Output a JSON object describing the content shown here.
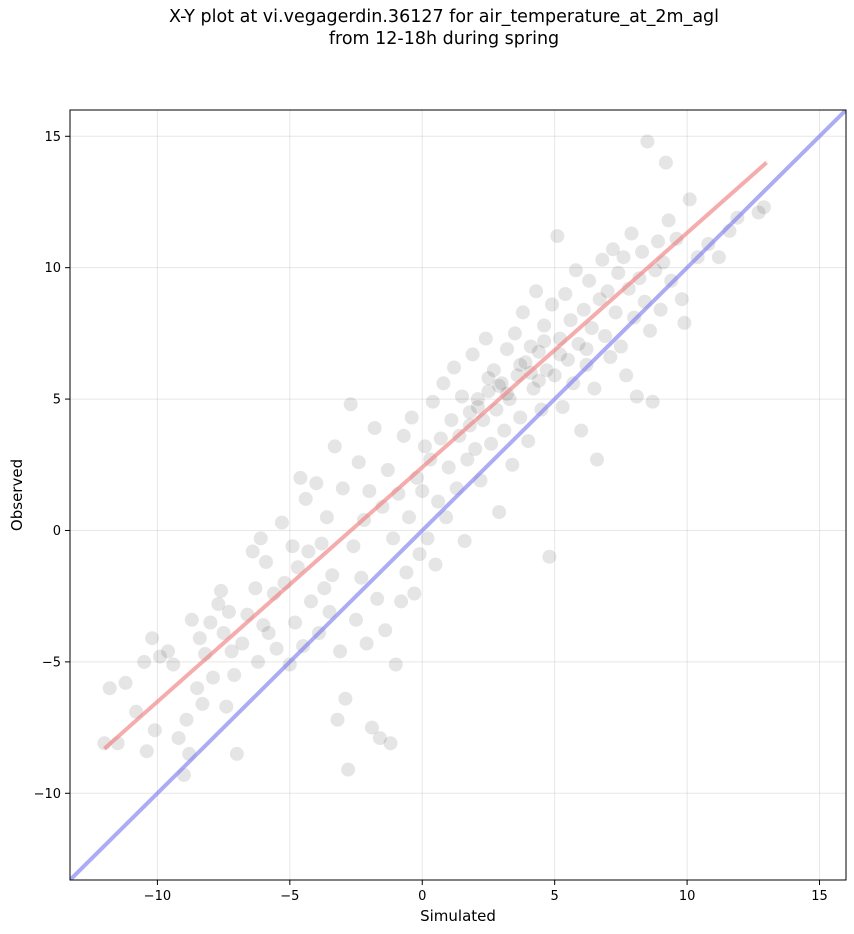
{
  "title_line1": "X-Y plot at vi.vegagerdin.36127 for air_temperature_at_2m_agl",
  "title_line2": "from 12-18h during spring",
  "chart_data": {
    "type": "scatter",
    "title": "X-Y plot at vi.vegagerdin.36127 for air_temperature_at_2m_agl from 12-18h during spring",
    "xlabel": "Simulated",
    "ylabel": "Observed",
    "xlim": [
      -13.3,
      16.0
    ],
    "ylim": [
      -13.3,
      16.0
    ],
    "xticks": [
      -10,
      -5,
      0,
      5,
      10,
      15
    ],
    "xtick_labels": [
      "−10",
      "−5",
      "0",
      "5",
      "10",
      "15"
    ],
    "yticks": [
      -10,
      -5,
      0,
      5,
      10,
      15
    ],
    "ytick_labels": [
      "−10",
      "−5",
      "0",
      "5",
      "10",
      "15"
    ],
    "grid": true,
    "colors": {
      "points": "#000000",
      "regression_line": "#f08080",
      "identity_line": "#8080f0"
    },
    "regression_line": {
      "x": [
        -12,
        13
      ],
      "y": [
        -8.3,
        14.0
      ]
    },
    "identity_line": {
      "x": [
        -13.3,
        16.0
      ],
      "y": [
        -13.3,
        16.0
      ]
    },
    "points": [
      [
        -12.0,
        -8.1
      ],
      [
        -11.8,
        -6.0
      ],
      [
        -11.5,
        -8.1
      ],
      [
        -11.2,
        -5.8
      ],
      [
        -10.8,
        -6.9
      ],
      [
        -10.5,
        -5.0
      ],
      [
        -10.4,
        -8.4
      ],
      [
        -10.2,
        -4.1
      ],
      [
        -10.1,
        -7.6
      ],
      [
        -9.9,
        -4.8
      ],
      [
        -9.6,
        -4.6
      ],
      [
        -9.4,
        -5.1
      ],
      [
        -9.2,
        -7.9
      ],
      [
        -9.0,
        -9.3
      ],
      [
        -8.9,
        -7.2
      ],
      [
        -8.8,
        -8.5
      ],
      [
        -8.7,
        -3.4
      ],
      [
        -8.5,
        -6.0
      ],
      [
        -8.4,
        -4.1
      ],
      [
        -8.3,
        -6.6
      ],
      [
        -8.2,
        -4.7
      ],
      [
        -8.0,
        -3.5
      ],
      [
        -7.9,
        -5.6
      ],
      [
        -7.7,
        -2.8
      ],
      [
        -7.6,
        -2.3
      ],
      [
        -7.5,
        -3.9
      ],
      [
        -7.4,
        -6.7
      ],
      [
        -7.3,
        -3.1
      ],
      [
        -7.2,
        -4.6
      ],
      [
        -7.1,
        -5.5
      ],
      [
        -7.0,
        -8.5
      ],
      [
        -6.8,
        -4.3
      ],
      [
        -6.6,
        -3.2
      ],
      [
        -6.4,
        -0.8
      ],
      [
        -6.3,
        -2.2
      ],
      [
        -6.2,
        -5.0
      ],
      [
        -6.1,
        -0.3
      ],
      [
        -6.0,
        -3.6
      ],
      [
        -5.9,
        -1.2
      ],
      [
        -5.8,
        -3.9
      ],
      [
        -5.6,
        -2.4
      ],
      [
        -5.5,
        -4.5
      ],
      [
        -5.3,
        0.3
      ],
      [
        -5.2,
        -2.0
      ],
      [
        -5.0,
        -5.1
      ],
      [
        -4.9,
        -0.6
      ],
      [
        -4.8,
        -3.5
      ],
      [
        -4.7,
        -1.4
      ],
      [
        -4.6,
        2.0
      ],
      [
        -4.5,
        -4.4
      ],
      [
        -4.4,
        1.2
      ],
      [
        -4.3,
        -0.8
      ],
      [
        -4.2,
        -2.7
      ],
      [
        -4.0,
        1.8
      ],
      [
        -3.9,
        -3.9
      ],
      [
        -3.8,
        -0.5
      ],
      [
        -3.7,
        -2.2
      ],
      [
        -3.6,
        0.5
      ],
      [
        -3.5,
        -3.1
      ],
      [
        -3.4,
        -1.7
      ],
      [
        -3.3,
        3.2
      ],
      [
        -3.2,
        -7.2
      ],
      [
        -3.1,
        -4.6
      ],
      [
        -3.0,
        1.6
      ],
      [
        -2.9,
        -6.4
      ],
      [
        -2.8,
        -9.1
      ],
      [
        -2.7,
        4.8
      ],
      [
        -2.6,
        -0.6
      ],
      [
        -2.5,
        -3.4
      ],
      [
        -2.4,
        2.6
      ],
      [
        -2.3,
        -1.8
      ],
      [
        -2.2,
        0.4
      ],
      [
        -2.1,
        -4.3
      ],
      [
        -2.0,
        1.5
      ],
      [
        -1.9,
        -7.5
      ],
      [
        -1.8,
        3.9
      ],
      [
        -1.7,
        -2.6
      ],
      [
        -1.6,
        -7.9
      ],
      [
        -1.5,
        0.9
      ],
      [
        -1.4,
        -3.8
      ],
      [
        -1.3,
        2.3
      ],
      [
        -1.2,
        -8.1
      ],
      [
        -1.1,
        -0.3
      ],
      [
        -1.0,
        -5.1
      ],
      [
        -0.9,
        1.4
      ],
      [
        -0.8,
        -2.7
      ],
      [
        -0.7,
        3.6
      ],
      [
        -0.6,
        -1.6
      ],
      [
        -0.5,
        0.5
      ],
      [
        -0.4,
        4.3
      ],
      [
        -0.3,
        -2.4
      ],
      [
        -0.2,
        2.0
      ],
      [
        -0.1,
        -0.9
      ],
      [
        0.0,
        1.5
      ],
      [
        0.1,
        3.2
      ],
      [
        0.2,
        -0.3
      ],
      [
        0.3,
        2.7
      ],
      [
        0.4,
        4.9
      ],
      [
        0.5,
        -1.3
      ],
      [
        0.6,
        1.1
      ],
      [
        0.7,
        3.5
      ],
      [
        0.8,
        5.6
      ],
      [
        0.9,
        0.5
      ],
      [
        1.0,
        2.4
      ],
      [
        1.1,
        4.2
      ],
      [
        1.2,
        6.2
      ],
      [
        1.3,
        1.6
      ],
      [
        1.4,
        3.6
      ],
      [
        1.5,
        5.1
      ],
      [
        1.6,
        -0.4
      ],
      [
        1.7,
        2.7
      ],
      [
        1.8,
        4.5
      ],
      [
        1.9,
        6.7
      ],
      [
        2.0,
        3.1
      ],
      [
        2.1,
        5.0
      ],
      [
        2.2,
        1.9
      ],
      [
        2.3,
        4.2
      ],
      [
        2.4,
        7.3
      ],
      [
        2.5,
        5.3
      ],
      [
        2.6,
        3.3
      ],
      [
        2.7,
        6.1
      ],
      [
        2.8,
        4.6
      ],
      [
        2.9,
        0.7
      ],
      [
        3.0,
        5.6
      ],
      [
        3.1,
        3.8
      ],
      [
        3.2,
        6.9
      ],
      [
        3.3,
        5.0
      ],
      [
        3.4,
        2.5
      ],
      [
        3.5,
        7.5
      ],
      [
        3.6,
        5.9
      ],
      [
        3.7,
        4.3
      ],
      [
        3.8,
        8.3
      ],
      [
        3.9,
        6.4
      ],
      [
        4.0,
        3.4
      ],
      [
        4.1,
        7.0
      ],
      [
        4.2,
        5.4
      ],
      [
        4.3,
        9.1
      ],
      [
        4.4,
        6.8
      ],
      [
        4.5,
        4.6
      ],
      [
        4.6,
        7.8
      ],
      [
        4.7,
        6.1
      ],
      [
        4.8,
        -1.0
      ],
      [
        4.9,
        8.6
      ],
      [
        5.0,
        5.9
      ],
      [
        5.1,
        11.2
      ],
      [
        5.2,
        7.3
      ],
      [
        5.3,
        4.7
      ],
      [
        5.4,
        9.0
      ],
      [
        5.5,
        6.5
      ],
      [
        5.6,
        8.0
      ],
      [
        5.7,
        5.6
      ],
      [
        5.8,
        9.9
      ],
      [
        5.9,
        7.1
      ],
      [
        6.0,
        3.8
      ],
      [
        6.1,
        8.4
      ],
      [
        6.2,
        6.3
      ],
      [
        6.3,
        9.5
      ],
      [
        6.4,
        7.7
      ],
      [
        6.5,
        5.4
      ],
      [
        6.6,
        2.7
      ],
      [
        6.7,
        8.8
      ],
      [
        6.8,
        10.3
      ],
      [
        6.9,
        7.4
      ],
      [
        7.0,
        9.1
      ],
      [
        7.1,
        6.6
      ],
      [
        7.2,
        10.7
      ],
      [
        7.3,
        8.3
      ],
      [
        7.4,
        9.8
      ],
      [
        7.5,
        7.0
      ],
      [
        7.6,
        10.4
      ],
      [
        7.7,
        5.9
      ],
      [
        7.8,
        9.2
      ],
      [
        7.9,
        11.3
      ],
      [
        8.0,
        8.1
      ],
      [
        8.1,
        5.1
      ],
      [
        8.2,
        9.6
      ],
      [
        8.3,
        10.6
      ],
      [
        8.4,
        8.7
      ],
      [
        8.5,
        14.8
      ],
      [
        8.6,
        7.6
      ],
      [
        8.7,
        4.9
      ],
      [
        8.8,
        9.9
      ],
      [
        8.9,
        11.0
      ],
      [
        9.0,
        8.4
      ],
      [
        9.1,
        10.2
      ],
      [
        9.2,
        14.0
      ],
      [
        9.3,
        11.8
      ],
      [
        9.4,
        9.5
      ],
      [
        9.6,
        11.1
      ],
      [
        9.8,
        8.8
      ],
      [
        9.9,
        7.9
      ],
      [
        10.1,
        12.6
      ],
      [
        10.4,
        10.4
      ],
      [
        10.8,
        10.9
      ],
      [
        11.2,
        10.4
      ],
      [
        11.6,
        11.4
      ],
      [
        11.9,
        11.9
      ],
      [
        12.7,
        12.1
      ],
      [
        12.9,
        12.3
      ],
      [
        6.2,
        6.9
      ],
      [
        2.1,
        4.7
      ],
      [
        2.5,
        5.8
      ],
      [
        3.2,
        5.2
      ],
      [
        3.7,
        6.3
      ],
      [
        4.1,
        6.0
      ],
      [
        4.6,
        7.2
      ],
      [
        5.2,
        6.7
      ],
      [
        1.8,
        4.0
      ],
      [
        2.9,
        5.5
      ],
      [
        4.4,
        5.7
      ]
    ]
  }
}
